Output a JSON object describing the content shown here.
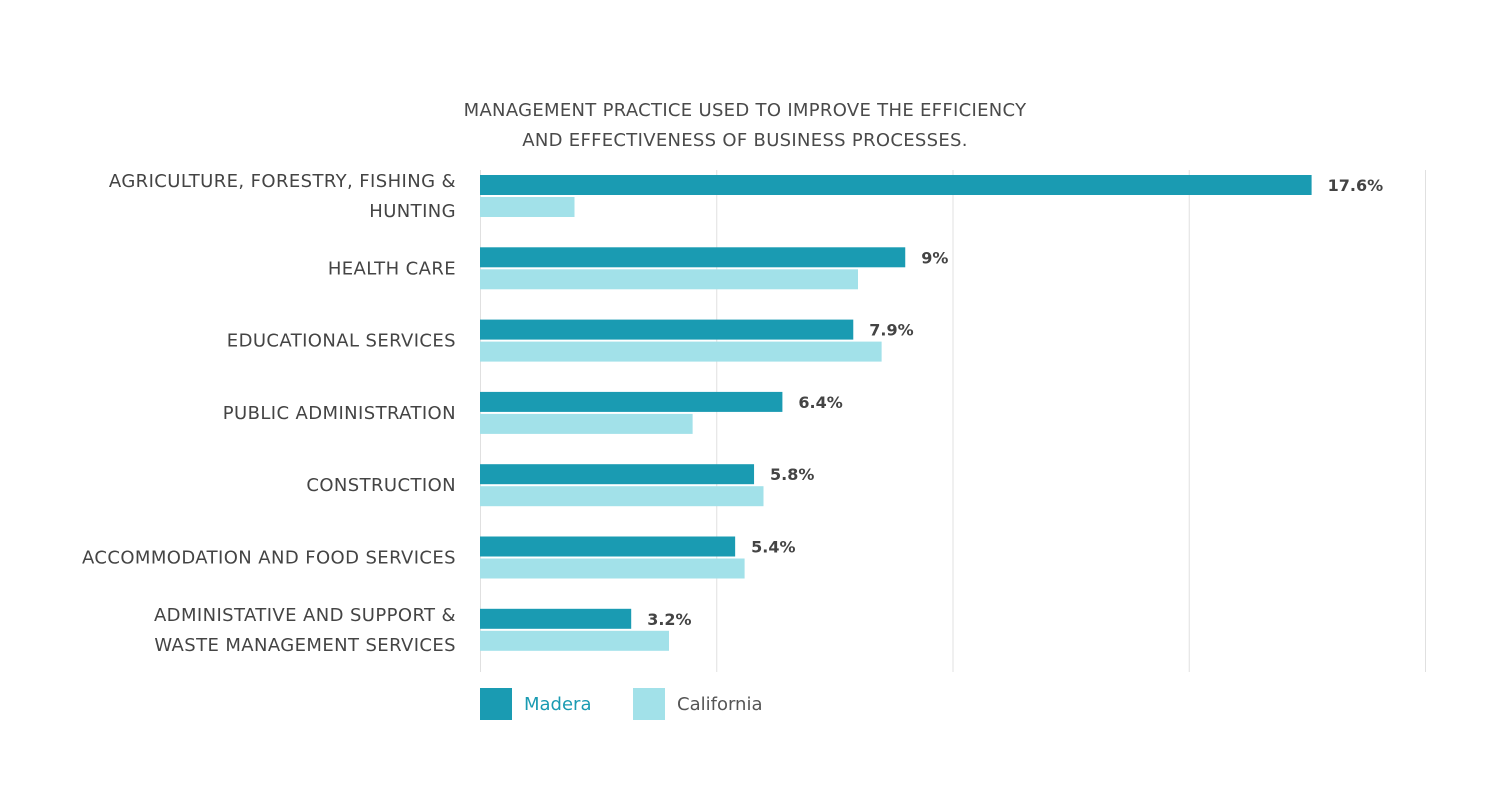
{
  "chart_data": {
    "type": "bar",
    "orientation": "horizontal",
    "title": [
      "MANAGEMENT PRACTICE USED TO IMPROVE THE EFFICIENCY",
      "AND EFFECTIVENESS OF BUSINESS PROCESSES."
    ],
    "categories": [
      [
        "AGRICULTURE, FORESTRY, FISHING &",
        "HUNTING"
      ],
      [
        "HEALTH CARE"
      ],
      [
        "EDUCATIONAL SERVICES"
      ],
      [
        "PUBLIC ADMINISTRATION"
      ],
      [
        "CONSTRUCTION"
      ],
      [
        "ACCOMMODATION AND FOOD SERVICES"
      ],
      [
        "ADMINISTATIVE AND SUPPORT &",
        "WASTE MANAGEMENT SERVICES"
      ]
    ],
    "series": [
      {
        "name": "Madera",
        "color": "#1a9bb2",
        "values": [
          17.6,
          9,
          7.9,
          6.4,
          5.8,
          5.4,
          3.2
        ],
        "labels": [
          "17.6%",
          "9%",
          "7.9%",
          "6.4%",
          "5.8%",
          "5.4%",
          "3.2%"
        ]
      },
      {
        "name": "California",
        "color": "#a2e1e9",
        "values": [
          2.0,
          8.0,
          8.5,
          4.5,
          6.0,
          5.6,
          4.0
        ]
      }
    ],
    "xlim": [
      0,
      20
    ],
    "grid": true,
    "legend_position": "bottom-left"
  }
}
